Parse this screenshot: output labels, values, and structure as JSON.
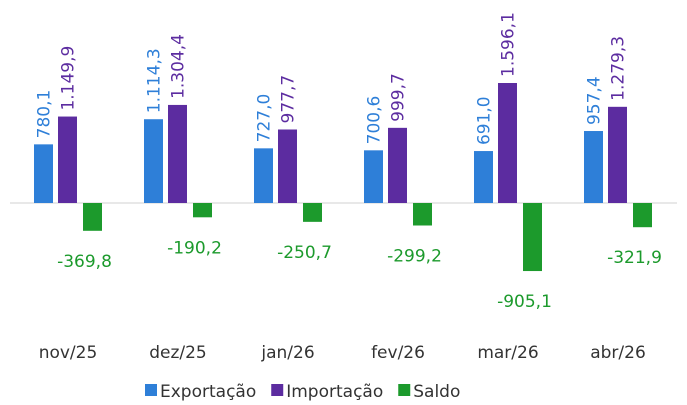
{
  "chart_data": {
    "type": "bar",
    "categories": [
      "nov/25",
      "dez/25",
      "jan/26",
      "fev/26",
      "mar/26",
      "abr/26"
    ],
    "series": [
      {
        "name": "Exportação",
        "color": "#2e7fd8",
        "values": [
          780.1,
          1114.3,
          727.0,
          700.6,
          691.0,
          957.4
        ],
        "value_labels": [
          "780,1",
          "1.114,3",
          "727,0",
          "700,6",
          "691,0",
          "957,4"
        ]
      },
      {
        "name": "Importação",
        "color": "#5c2ca0",
        "values": [
          1149.9,
          1304.4,
          977.7,
          999.7,
          1596.1,
          1279.3
        ],
        "value_labels": [
          "1.149,9",
          "1.304,4",
          "977,7",
          "999,7",
          "1.596,1",
          "1.279,3"
        ]
      },
      {
        "name": "Saldo",
        "color": "#1c9a2c",
        "values": [
          -369.8,
          -190.2,
          -250.7,
          -299.2,
          -905.1,
          -321.9
        ],
        "value_labels": [
          "-369,8",
          "-190,2",
          "-250,7",
          "-299,2",
          "-905,1",
          "-321,9"
        ]
      }
    ]
  }
}
